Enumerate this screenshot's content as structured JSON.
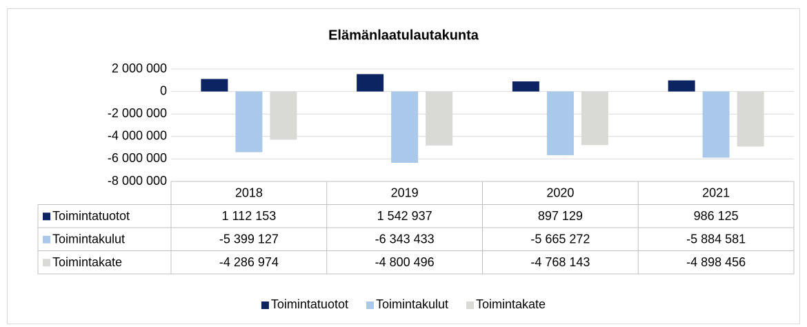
{
  "chart_data": {
    "type": "bar",
    "title": "Elämänlaatulautakunta",
    "categories": [
      "2018",
      "2019",
      "2020",
      "2021"
    ],
    "series": [
      {
        "name": "Toimintatuotot",
        "color": "#0c2461",
        "values": [
          1112153,
          1542937,
          897129,
          986125
        ],
        "value_labels": [
          "1 112 153",
          "1 542 937",
          "897 129",
          "986 125"
        ]
      },
      {
        "name": "Toimintakulut",
        "color": "#a9c8ea",
        "values": [
          -5399127,
          -6343433,
          -5665272,
          -5884581
        ],
        "value_labels": [
          "-5 399 127",
          "-6 343 433",
          "-5 665 272",
          "-5 884 581"
        ]
      },
      {
        "name": "Toimintakate",
        "color": "#d9d9d5",
        "values": [
          -4286974,
          -4800496,
          -4768143,
          -4898456
        ],
        "value_labels": [
          "-4 286 974",
          "-4 800 496",
          "-4 768 143",
          "-4 898 456"
        ]
      }
    ],
    "ylim": [
      -8000000,
      2000000
    ],
    "yticks": [
      {
        "value": 2000000,
        "label": "2 000 000"
      },
      0,
      {
        "value": -2000000,
        "label": "-2 000 000"
      },
      {
        "value": -4000000,
        "label": "-4 000 000"
      },
      {
        "value": -6000000,
        "label": "-6 000 000"
      },
      {
        "value": -8000000,
        "label": "-8 000 000"
      }
    ],
    "grid": true,
    "legend": "bottom"
  }
}
